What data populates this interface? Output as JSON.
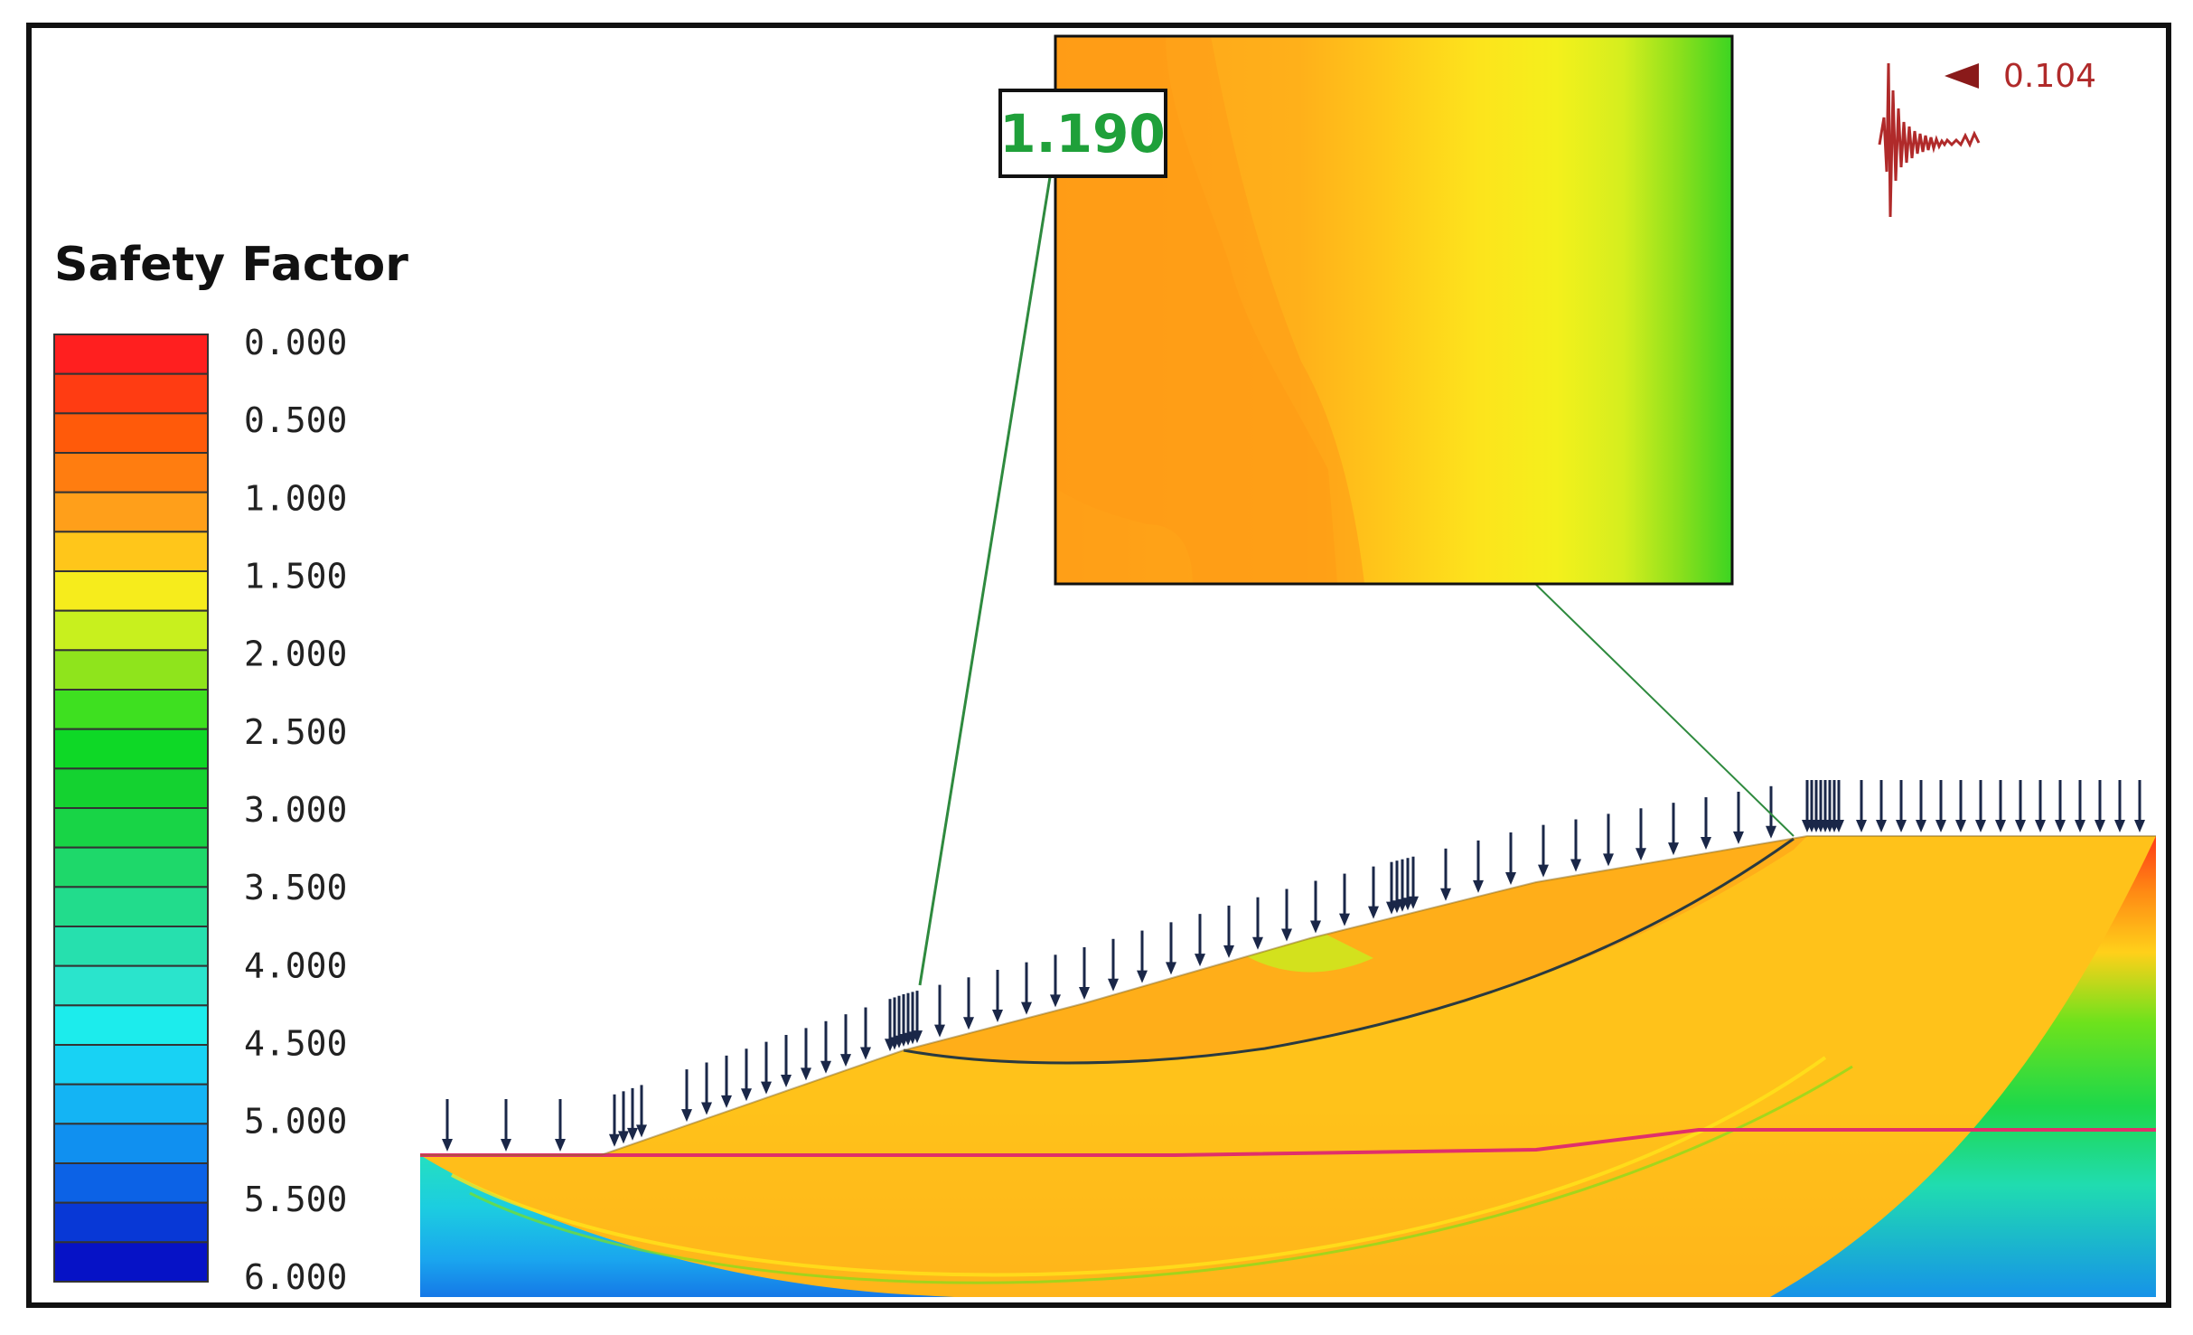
{
  "legend": {
    "title": "Safety Factor",
    "ticks": [
      "0.000",
      "0.500",
      "1.000",
      "1.500",
      "2.000",
      "2.500",
      "3.000",
      "3.500",
      "4.000",
      "4.500",
      "5.000",
      "5.500",
      "6.000"
    ],
    "colors": [
      "#ff1f1f",
      "#ff3c12",
      "#ff5a0a",
      "#ff7d10",
      "#ff9f1a",
      "#ffc61a",
      "#f6ec1c",
      "#c8f01e",
      "#8fe41c",
      "#3ee020",
      "#0ed826",
      "#14d230",
      "#18d446",
      "#1ed86a",
      "#22dc8c",
      "#26e0ae",
      "#2ae4cc",
      "#1cecec",
      "#18d2f4",
      "#14b4f4",
      "#1090f0",
      "#0c62e6",
      "#0838d6",
      "#0612c6"
    ]
  },
  "critical_surface": {
    "factor_of_safety": "1.190",
    "label_color": "#1fa03a"
  },
  "seismic_load": {
    "coefficient": "0.104",
    "icon": "seismic-accelerogram-icon",
    "color": "#b02a2a"
  },
  "colors": {
    "frame": "#111111",
    "load_arrows": "#1a2748",
    "slip_surface": "#2a3a40",
    "water_table": "#e0306a",
    "zoom_lines": "#2e8a3e"
  }
}
